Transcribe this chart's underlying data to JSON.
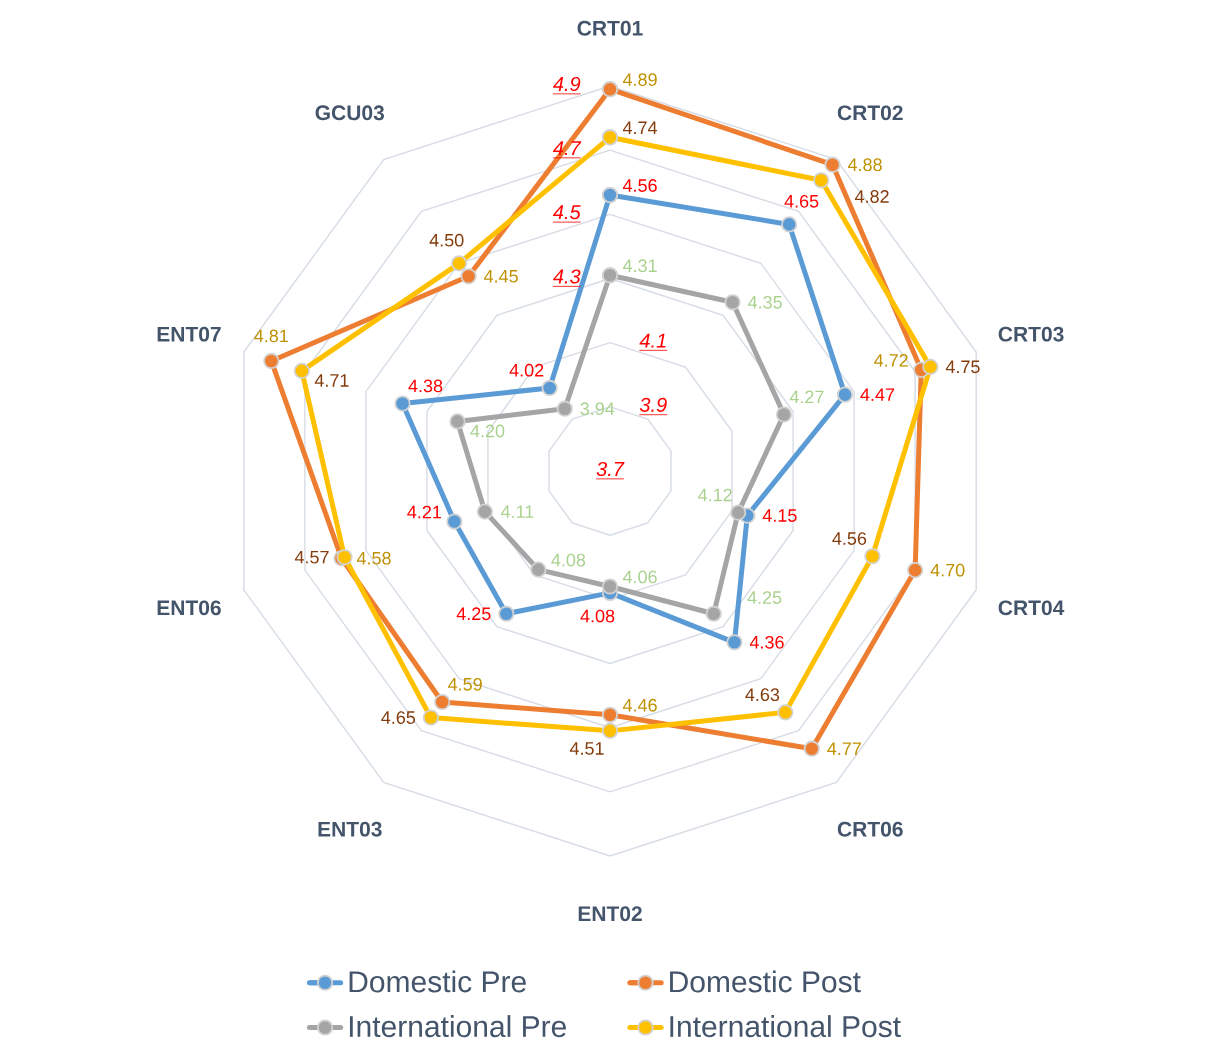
{
  "chart_data": {
    "type": "radar",
    "categories": [
      "CRT01",
      "CRT02",
      "CRT03",
      "CRT04",
      "CRT06",
      "ENT02",
      "ENT03",
      "ENT06",
      "ENT07",
      "GCU03"
    ],
    "series": [
      {
        "name": "Domestic Pre",
        "color": "#5b9bd5",
        "values": [
          4.56,
          4.65,
          4.47,
          4.15,
          4.36,
          4.08,
          4.25,
          4.21,
          4.38,
          4.02
        ],
        "value_labels": [
          "4.56",
          "4.65",
          "4.47",
          "4.15",
          "4.36",
          "4.08",
          "4.25",
          "4.21",
          "4.38",
          "4.02"
        ]
      },
      {
        "name": "Domestic Post",
        "color": "#ed7d31",
        "values": [
          4.89,
          4.88,
          4.72,
          4.7,
          4.77,
          4.46,
          4.59,
          4.58,
          4.81,
          4.45
        ],
        "value_labels": [
          "4.89",
          "4.88",
          "4.72",
          "4.70",
          "4.77",
          "4.46",
          "4.59",
          "4.58",
          "4.81",
          "4.45"
        ]
      },
      {
        "name": "International Pre",
        "color": "#a5a5a5",
        "values": [
          4.31,
          4.35,
          4.27,
          4.12,
          4.25,
          4.06,
          4.08,
          4.11,
          4.2,
          3.94
        ],
        "value_labels": [
          "4.31",
          "4.35",
          "4.27",
          "4.12",
          "4.25",
          "4.06",
          "4.08",
          "4.11",
          "4.20",
          "3.94"
        ]
      },
      {
        "name": "International Post",
        "color": "#ffc000",
        "values": [
          4.74,
          4.82,
          4.75,
          4.56,
          4.63,
          4.51,
          4.65,
          4.57,
          4.71,
          4.5
        ],
        "value_labels": [
          "4.74",
          "4.82",
          "4.75",
          "4.56",
          "4.63",
          "4.51",
          "4.65",
          "4.57",
          "4.71",
          "4.50"
        ]
      }
    ],
    "ylim": [
      3.7,
      4.9
    ],
    "yticks": [
      3.7,
      3.9,
      4.1,
      4.3,
      4.5,
      4.7,
      4.9
    ],
    "grid": true,
    "legend": "bottom",
    "marker": "circle",
    "line_style": "solid"
  }
}
